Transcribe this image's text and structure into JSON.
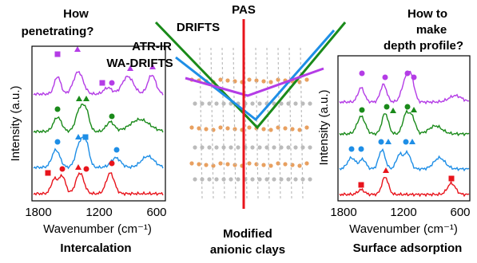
{
  "left_panel": {
    "question_lines": [
      "How",
      "penetrating?"
    ],
    "y_label": "Intensity (a.u.)",
    "x_label": "Wavenumber (cm⁻¹)",
    "x_ticks": [
      "1800",
      "1200",
      "600"
    ],
    "caption": "Intercalation"
  },
  "center": {
    "techniques": [
      {
        "label": "PAS",
        "color": "#e8141c"
      },
      {
        "label": "DRIFTS",
        "color": "#1a8a1a"
      },
      {
        "label": "ATR-IR",
        "color": "#1e8ee6"
      },
      {
        "label": "WA-DRIFTS",
        "color": "#b43ce6"
      }
    ],
    "caption_lines": [
      "Modified",
      "anionic clays"
    ]
  },
  "right_panel": {
    "question_lines": [
      "How to",
      "make",
      "depth profile?"
    ],
    "y_label": "Intensity (a.u.)",
    "x_label": "Wavenumber (cm⁻¹)",
    "x_ticks": [
      "1800",
      "1200",
      "600"
    ],
    "caption": "Surface adsorption"
  }
}
